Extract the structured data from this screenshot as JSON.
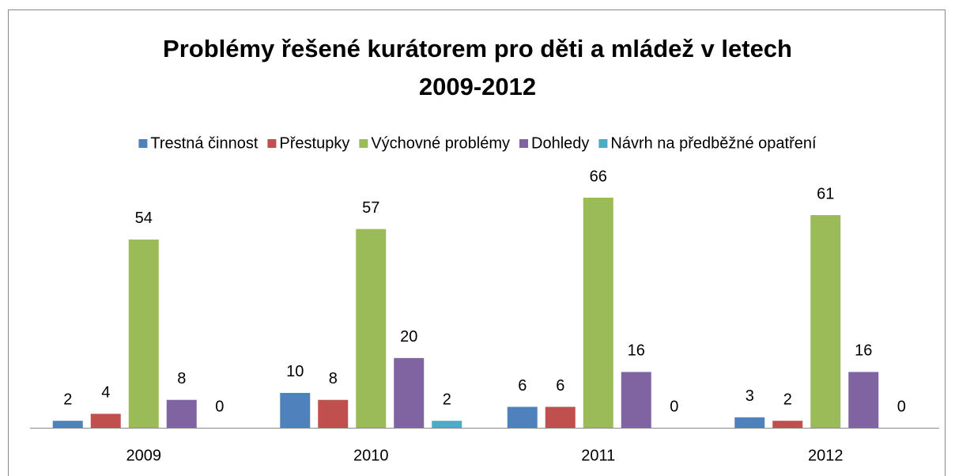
{
  "chart_data": {
    "type": "bar",
    "title": "Problémy řešené kurátorem pro děti a mládež v letech 2009-2012",
    "categories": [
      "2009",
      "2010",
      "2011",
      "2012"
    ],
    "series": [
      {
        "name": "Trestná činnost",
        "color": "#4f81bd",
        "values": [
          2,
          10,
          6,
          3
        ]
      },
      {
        "name": "Přestupky",
        "color": "#c0504d",
        "values": [
          4,
          8,
          6,
          2
        ]
      },
      {
        "name": "Výchovné problémy",
        "color": "#9bbb59",
        "values": [
          54,
          57,
          66,
          61
        ]
      },
      {
        "name": "Dohledy",
        "color": "#8064a2",
        "values": [
          8,
          20,
          16,
          16
        ]
      },
      {
        "name": "Návrh na předběžné opatření",
        "color": "#4bacc6",
        "values": [
          0,
          2,
          0,
          0
        ]
      }
    ],
    "legend": "top"
  }
}
